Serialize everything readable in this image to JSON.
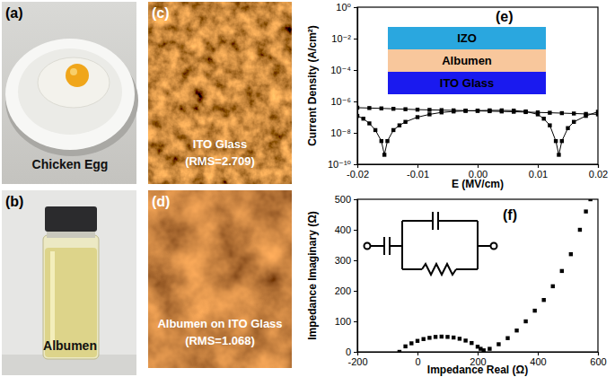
{
  "images": [
    {
      "label": "(a)",
      "caption": [
        "Chicken Egg"
      ]
    },
    {
      "label": "(b)",
      "caption": [
        "Albumen"
      ]
    },
    {
      "label": "(c)",
      "caption": [
        "ITO Glass",
        "(RMS=2.709)"
      ]
    },
    {
      "label": "(d)",
      "caption": [
        "Albumen on ITO Glass",
        "(RMS=1.068)"
      ]
    }
  ],
  "chart_data": [
    {
      "type": "line",
      "title": "(e)",
      "x_label": "E (MV/cm)",
      "y_label": "Current Density (A/cm²)",
      "log": "y",
      "xlim": [
        -0.02,
        0.02
      ],
      "xticks": [
        -0.02,
        -0.01,
        {
          "value": 0,
          "label": "0.00"
        },
        0.01,
        0.02
      ],
      "ylim": [
        1e-10,
        1
      ],
      "yticks": [
        {
          "value": 1,
          "label": "10⁰"
        },
        {
          "value": 0.01,
          "label": "10⁻²"
        },
        {
          "value": 0.0001,
          "label": "10⁻⁴"
        },
        {
          "value": 1e-06,
          "label": "10⁻⁶"
        },
        {
          "value": 1e-08,
          "label": "10⁻⁸"
        },
        {
          "value": 1e-10,
          "label": "10⁻¹⁰"
        }
      ],
      "marker": "square",
      "line_style": "solid",
      "color": "#000000",
      "inset": [
        "IZO",
        "Albumen",
        "ITO Glass"
      ],
      "series": [
        {
          "x": [
            -0.02,
            -0.018,
            -0.016,
            -0.014,
            -0.012,
            -0.01,
            -0.008,
            -0.006,
            -0.004,
            -0.002,
            0,
            0.002,
            0.004,
            0.006,
            0.008,
            0.01,
            0.012,
            0.014,
            0.016,
            0.018,
            0.02
          ],
          "values": [
            4e-07,
            3.8e-07,
            3.6e-07,
            3.4e-07,
            3.2e-07,
            3e-07,
            2.9e-07,
            2.8e-07,
            2.7e-07,
            2.6e-07,
            2.5e-07,
            2.4e-07,
            2.3e-07,
            2.2e-07,
            2.1e-07,
            2e-07,
            1.9e-07,
            1.8e-07,
            1.7e-07,
            1.6e-07,
            1.5e-07
          ]
        },
        {
          "x": [
            -0.02,
            -0.019,
            -0.018,
            -0.017,
            -0.016,
            -0.0155,
            -0.015,
            -0.014,
            -0.013,
            -0.012,
            -0.01,
            -0.008,
            -0.006,
            -0.004,
            -0.002,
            0,
            0.002,
            0.004,
            0.006,
            0.008,
            0.01,
            0.011,
            0.012,
            0.013,
            0.0135,
            0.014,
            0.015,
            0.016,
            0.018,
            0.02
          ],
          "values": [
            1.2e-07,
            8e-08,
            4e-08,
            1.5e-08,
            3e-09,
            4e-10,
            3e-09,
            1.5e-08,
            3e-08,
            5e-08,
            1e-07,
            1.5e-07,
            2e-07,
            2.3e-07,
            2.5e-07,
            2.6e-07,
            2.7e-07,
            2.7e-07,
            2.6e-07,
            2.3e-07,
            1.5e-07,
            8e-08,
            3e-08,
            3e-09,
            4e-10,
            3e-09,
            2e-08,
            5e-08,
            1.2e-07,
            2.2e-07
          ]
        }
      ]
    },
    {
      "type": "scatter",
      "title": "(f)",
      "x_label": "Impedance Real (Ω)",
      "y_label": "Impedance Imaginary (Ω)",
      "xlim": [
        -200,
        600
      ],
      "xticks": [
        -200,
        0,
        200,
        400,
        600
      ],
      "ylim": [
        0,
        500
      ],
      "yticks": [
        0,
        100,
        200,
        300,
        400,
        500
      ],
      "marker": "square",
      "line_style": "none",
      "color": "#000000",
      "series": [
        {
          "x": [
            -60,
            -40,
            -20,
            0,
            20,
            40,
            60,
            80,
            100,
            120,
            140,
            160,
            180,
            200,
            210,
            220,
            240,
            270,
            300,
            330,
            360,
            390,
            420,
            450,
            480,
            510,
            540,
            560,
            575
          ],
          "values": [
            0,
            18,
            28,
            36,
            42,
            46,
            49,
            50,
            49,
            47,
            43,
            37,
            29,
            17,
            10,
            5,
            10,
            25,
            45,
            70,
            100,
            135,
            170,
            215,
            265,
            320,
            400,
            460,
            500
          ]
        }
      ]
    }
  ]
}
